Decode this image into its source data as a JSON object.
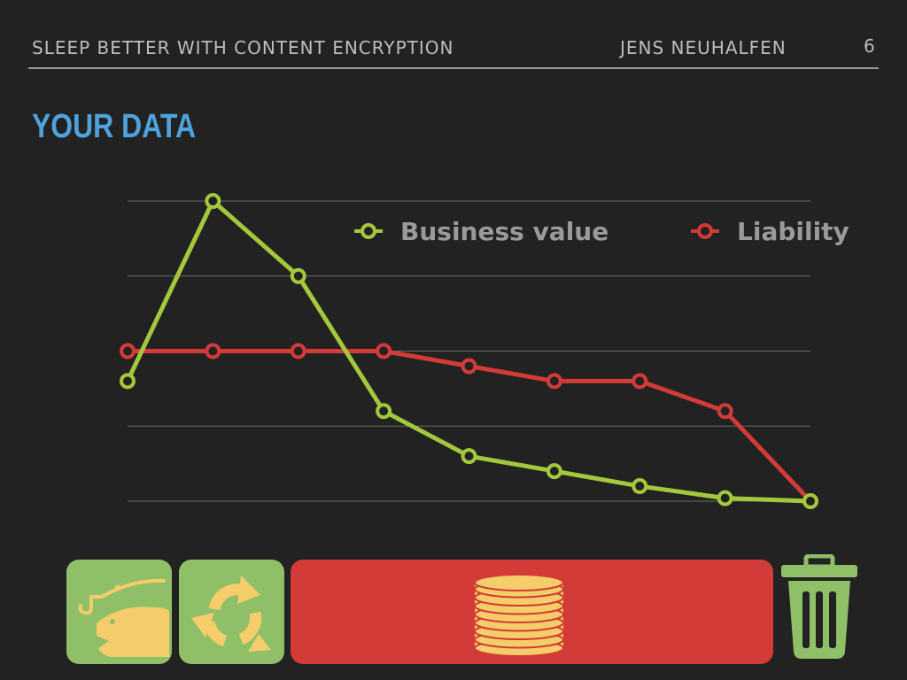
{
  "header": {
    "talk_title": "SLEEP BETTER WITH CONTENT ENCRYPTION",
    "speaker": "JENS NEUHALFEN",
    "page_number": "6"
  },
  "slide": {
    "title": "YOUR DATA"
  },
  "colors": {
    "business_value": "#a4c83c",
    "liability": "#d23b37",
    "title_blue": "#4fa3dc",
    "tile_green": "#8fc068",
    "tile_red": "#d23b37",
    "icon_yellow": "#f5cd6a"
  },
  "chart_data": {
    "type": "line",
    "x": [
      1,
      2,
      3,
      4,
      5,
      6,
      7,
      8,
      9
    ],
    "ylim": [
      0,
      4
    ],
    "grid": true,
    "legend_position": "top-right",
    "series": [
      {
        "name": "Business value",
        "color": "#a4c83c",
        "values": [
          1.6,
          4.0,
          3.0,
          1.2,
          0.6,
          0.4,
          0.2,
          0.04,
          0.0
        ]
      },
      {
        "name": "Liability",
        "color": "#d23b37",
        "values": [
          2.0,
          2.0,
          2.0,
          2.0,
          1.8,
          1.6,
          1.6,
          1.2,
          0.0
        ]
      }
    ]
  },
  "lifecycle_icons": [
    "fishing-hook-fish-icon",
    "recycle-arrows-icon",
    "coin-stack-icon",
    "trash-can-icon"
  ]
}
